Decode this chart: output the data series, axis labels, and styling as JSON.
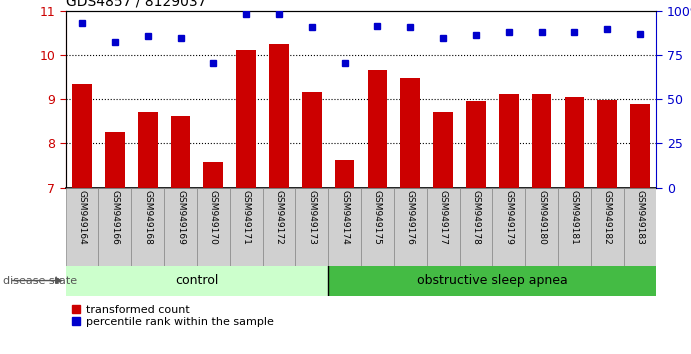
{
  "title": "GDS4857 / 8129037",
  "samples": [
    "GSM949164",
    "GSM949166",
    "GSM949168",
    "GSM949169",
    "GSM949170",
    "GSM949171",
    "GSM949172",
    "GSM949173",
    "GSM949174",
    "GSM949175",
    "GSM949176",
    "GSM949177",
    "GSM949178",
    "GSM949179",
    "GSM949180",
    "GSM949181",
    "GSM949182",
    "GSM949183"
  ],
  "bar_values": [
    9.35,
    8.25,
    8.72,
    8.62,
    7.58,
    10.12,
    10.25,
    9.15,
    7.62,
    9.65,
    9.48,
    8.72,
    8.95,
    9.12,
    9.12,
    9.05,
    8.98,
    8.88
  ],
  "percentile_values": [
    10.72,
    10.28,
    10.42,
    10.38,
    9.82,
    10.92,
    10.92,
    10.62,
    9.82,
    10.65,
    10.62,
    10.38,
    10.45,
    10.52,
    10.52,
    10.52,
    10.58,
    10.48
  ],
  "bar_color": "#cc0000",
  "percentile_color": "#0000cc",
  "n_control": 8,
  "n_osa": 10,
  "control_color": "#ccffcc",
  "osa_color": "#44bb44",
  "control_label": "control",
  "osa_label": "obstructive sleep apnea",
  "disease_state_label": "disease state",
  "ylim_left": [
    7,
    11
  ],
  "ylim_right": [
    0,
    100
  ],
  "yticks_left": [
    7,
    8,
    9,
    10,
    11
  ],
  "yticks_right": [
    0,
    25,
    50,
    75,
    100
  ],
  "ytick_labels_right": [
    "0",
    "25",
    "50",
    "75",
    "100%"
  ],
  "grid_values": [
    8,
    9,
    10
  ],
  "bar_width": 0.6,
  "legend_bar": "transformed count",
  "legend_pct": "percentile rank within the sample",
  "label_bg_color": "#d0d0d0",
  "label_border_color": "#888888"
}
